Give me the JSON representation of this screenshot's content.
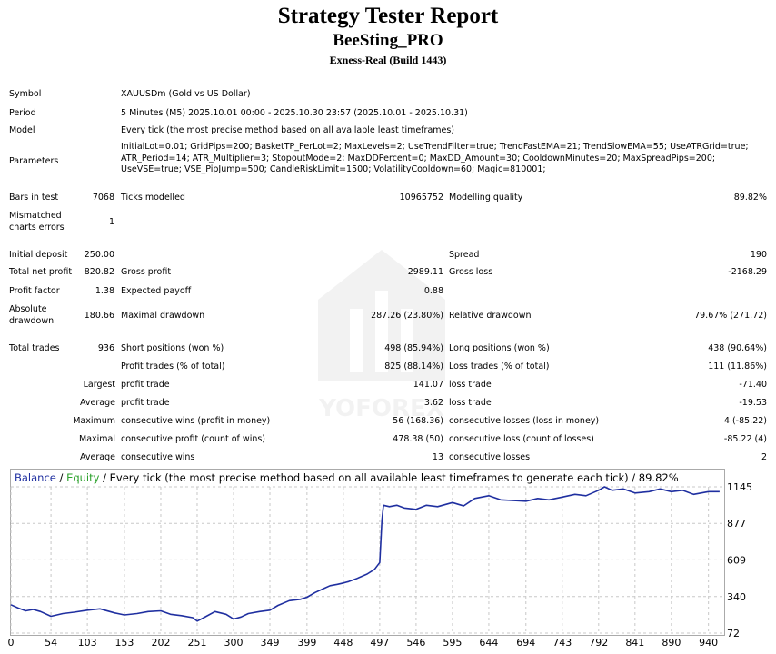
{
  "header": {
    "title": "Strategy Tester Report",
    "subtitle": "BeeSting_PRO",
    "build": "Exness-Real (Build 1443)"
  },
  "info": {
    "symbol_label": "Symbol",
    "symbol_value": "XAUUSDm (Gold vs US Dollar)",
    "period_label": "Period",
    "period_value": "5 Minutes (M5) 2025.10.01 00:00 - 2025.10.30 23:57 (2025.10.01 - 2025.10.31)",
    "model_label": "Model",
    "model_value": "Every tick (the most precise method based on all available least timeframes)",
    "parameters_label": "Parameters",
    "parameters_line1": "InitialLot=0.01; GridPips=200; BasketTP_PerLot=2; MaxLevels=2; UseTrendFilter=true; TrendFastEMA=21; TrendSlowEMA=55; UseATRGrid=true;",
    "parameters_line2": "ATR_Period=14; ATR_Multiplier=3; StopoutMode=2; MaxDDPercent=0; MaxDD_Amount=30; CooldownMinutes=20; MaxSpreadPips=200;",
    "parameters_line3": "UseVSE=true; VSE_PipJump=500; CandleRiskLimit=1500; VolatilityCooldown=60; Magic=810001;"
  },
  "stats": {
    "bars_label": "Bars in test",
    "bars_value": "7068",
    "ticks_label": "Ticks modelled",
    "ticks_value": "10965752",
    "quality_label": "Modelling quality",
    "quality_value": "89.82%",
    "mismatch_label1": "Mismatched",
    "mismatch_label2": "charts errors",
    "mismatch_value": "1",
    "deposit_label": "Initial deposit",
    "deposit_value": "250.00",
    "spread_label": "Spread",
    "spread_value": "190",
    "net_label": "Total net profit",
    "net_value": "820.82",
    "gross_profit_label": "Gross profit",
    "gross_profit_value": "2989.11",
    "gross_loss_label": "Gross loss",
    "gross_loss_value": "-2168.29",
    "pf_label": "Profit factor",
    "pf_value": "1.38",
    "payoff_label": "Expected payoff",
    "payoff_value": "0.88",
    "abs_dd_label1": "Absolute",
    "abs_dd_label2": "drawdown",
    "abs_dd_value": "180.66",
    "max_dd_label": "Maximal drawdown",
    "max_dd_value": "287.26 (23.80%)",
    "rel_dd_label": "Relative drawdown",
    "rel_dd_value": "79.67% (271.72)",
    "trades_label": "Total trades",
    "trades_value": "936",
    "short_label": "Short positions (won %)",
    "short_value": "498 (85.94%)",
    "long_label": "Long positions (won %)",
    "long_value": "438 (90.64%)",
    "profit_trades_label": "Profit trades (% of total)",
    "profit_trades_value": "825 (88.14%)",
    "loss_trades_label": "Loss trades (% of total)",
    "loss_trades_value": "111 (11.86%)",
    "largest_label": "Largest",
    "largest_profit_label": "profit trade",
    "largest_profit_value": "141.07",
    "largest_loss_label": "loss trade",
    "largest_loss_value": "-71.40",
    "average_label": "Average",
    "average_profit_label": "profit trade",
    "average_profit_value": "3.62",
    "average_loss_label": "loss trade",
    "average_loss_value": "-19.53",
    "maximum_label": "Maximum",
    "max_cons_wins_label": "consecutive wins (profit in money)",
    "max_cons_wins_value": "56 (168.36)",
    "max_cons_losses_label": "consecutive losses (loss in money)",
    "max_cons_losses_value": "4 (-85.22)",
    "maximal_label": "Maximal",
    "maximal_profit_label": "consecutive profit (count of wins)",
    "maximal_profit_value": "478.38 (50)",
    "maximal_loss_label": "consecutive loss (count of losses)",
    "maximal_loss_value": "-85.22 (4)",
    "avg2_label": "Average",
    "avg_cons_wins_label": "consecutive wins",
    "avg_cons_wins_value": "13",
    "avg_cons_losses_label": "consecutive losses",
    "avg_cons_losses_value": "2"
  },
  "chart_legend": {
    "balance": "Balance",
    "sep1": " / ",
    "equity": "Equity",
    "rest": " / Every tick (the most precise method based on all available least timeframes to generate each tick) / 89.82%"
  },
  "watermark_text": "YOFOREX",
  "colors": {
    "balance": "#1f2fa0",
    "equity": "#2aa02a",
    "grid": "#c8c8c8"
  },
  "chart_data": {
    "type": "line",
    "title": "",
    "xlabel": "",
    "ylabel": "",
    "x_ticks": [
      0,
      54,
      103,
      153,
      202,
      251,
      300,
      349,
      399,
      448,
      497,
      546,
      595,
      644,
      694,
      743,
      792,
      841,
      890,
      940
    ],
    "y_ticks": [
      72,
      340,
      609,
      877,
      1145
    ],
    "xlim": [
      0,
      960
    ],
    "ylim": [
      72,
      1145
    ],
    "grid": true,
    "series": [
      {
        "name": "Balance",
        "x": [
          0,
          10,
          20,
          30,
          40,
          54,
          70,
          85,
          103,
          120,
          140,
          153,
          170,
          185,
          202,
          215,
          230,
          245,
          251,
          260,
          275,
          290,
          300,
          310,
          320,
          335,
          349,
          360,
          375,
          390,
          399,
          410,
          420,
          430,
          440,
          448,
          455,
          465,
          480,
          490,
          497,
          500,
          502,
          510,
          520,
          530,
          546,
          560,
          575,
          595,
          610,
          625,
          644,
          660,
          675,
          694,
          710,
          725,
          743,
          760,
          775,
          792,
          800,
          810,
          825,
          841,
          860,
          875,
          890,
          905,
          920,
          940,
          955
        ],
        "y": [
          280,
          255,
          235,
          245,
          230,
          195,
          215,
          225,
          240,
          250,
          220,
          205,
          215,
          230,
          235,
          210,
          200,
          185,
          160,
          185,
          230,
          210,
          175,
          190,
          215,
          230,
          240,
          275,
          310,
          320,
          335,
          370,
          395,
          420,
          430,
          440,
          450,
          470,
          505,
          540,
          590,
          900,
          1010,
          1000,
          1010,
          990,
          980,
          1010,
          1000,
          1030,
          1005,
          1060,
          1080,
          1050,
          1045,
          1040,
          1060,
          1050,
          1070,
          1090,
          1080,
          1120,
          1145,
          1120,
          1130,
          1100,
          1110,
          1130,
          1110,
          1120,
          1090,
          1110,
          1110
        ]
      }
    ]
  }
}
